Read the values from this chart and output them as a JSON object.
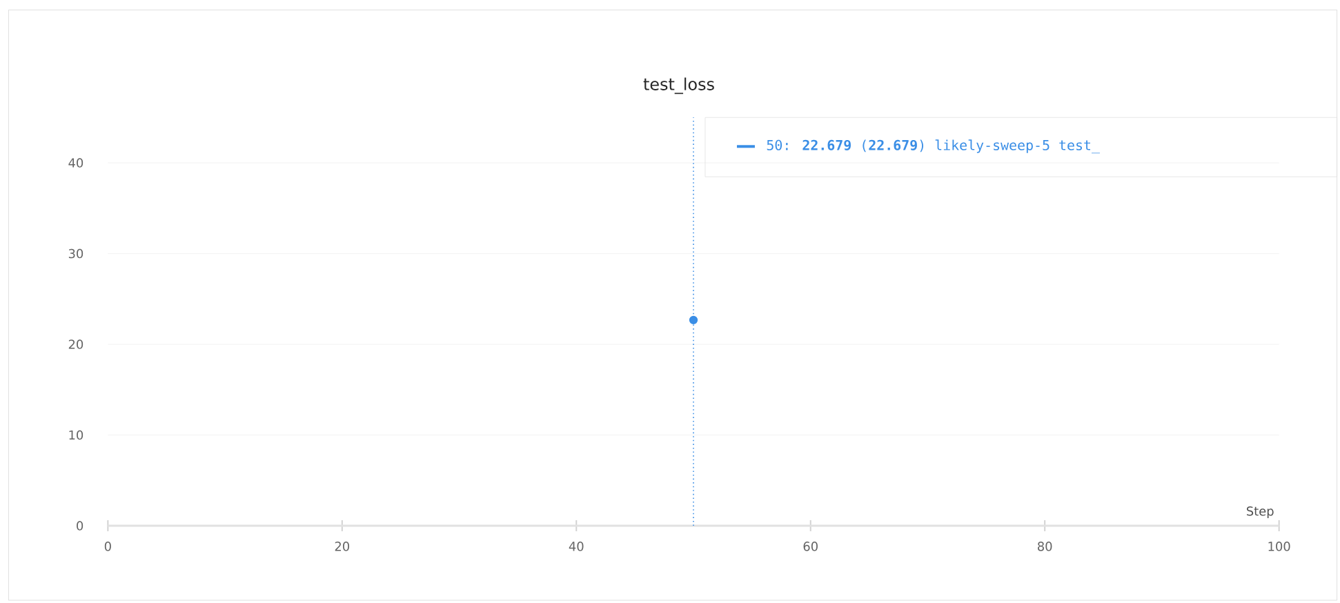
{
  "chart_data": {
    "type": "line",
    "title": "test_loss",
    "xlabel": "Step",
    "x": [
      50
    ],
    "series": [
      {
        "color": "#3a8ee6",
        "values": [
          22.679
        ]
      }
    ],
    "marker": "circle",
    "xlim": [
      0,
      100
    ],
    "xticks": [
      0,
      20,
      40,
      60,
      80,
      100
    ],
    "ylim": [
      0,
      45
    ],
    "yticks": [
      0,
      10,
      20,
      30,
      40
    ],
    "grid": "y",
    "ref_lines": [
      {
        "axis": "x",
        "value": 50,
        "color": "#3a8ee6",
        "line_style": "dotted"
      }
    ],
    "annotations": [
      "50: **22.679** (**22.679**) likely-sweep-5 test_"
    ]
  }
}
